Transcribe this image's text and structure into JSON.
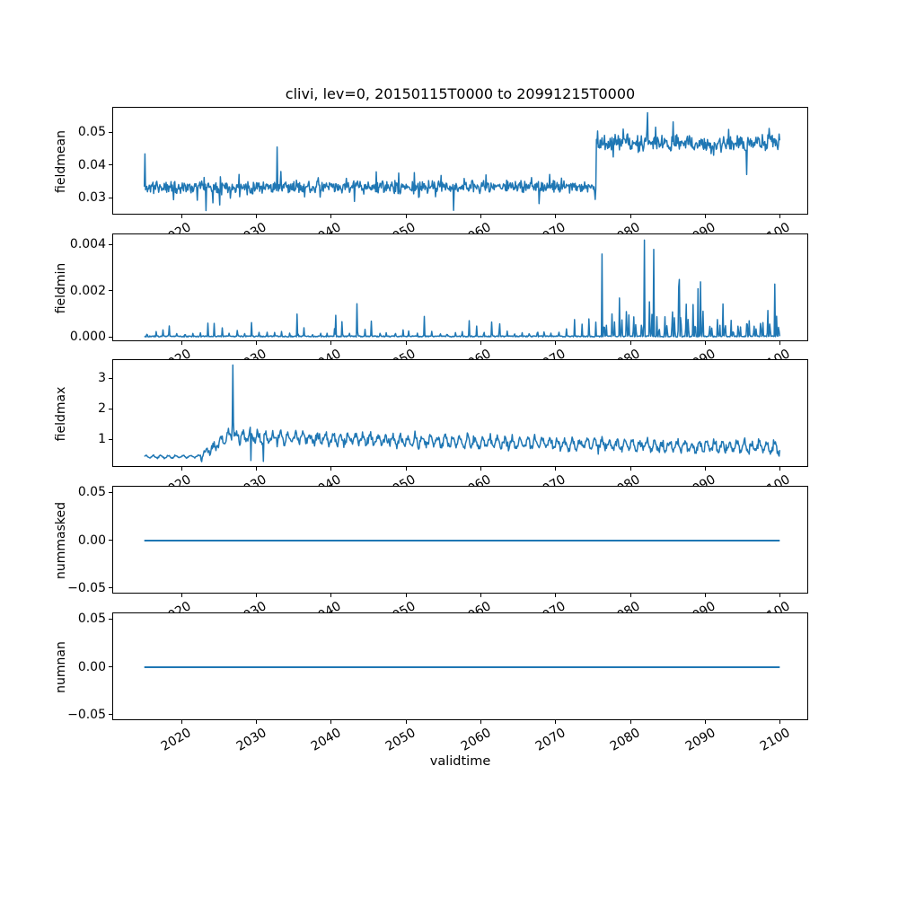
{
  "figure": {
    "title": "clivi, lev=0, 20150115T0000 to 20991215T0000",
    "background": "#ffffff",
    "line_color": "#1f77b4",
    "frame_color": "#000000",
    "text_color": "#000000"
  },
  "x_axis": {
    "label": "validtime",
    "xlim": [
      2010.88,
      2103.88
    ],
    "ticks": [
      2020,
      2030,
      2040,
      2050,
      2060,
      2070,
      2080,
      2090,
      2100
    ],
    "tick_labels": [
      "2020",
      "2030",
      "2040",
      "2050",
      "2060",
      "2070",
      "2080",
      "2090",
      "2100"
    ],
    "tick_label_rotation_deg": 30,
    "x_start": 2015.042,
    "x_end": 2099.958,
    "n_points": 1020
  },
  "chart_data": [
    {
      "type": "line",
      "panel": "fieldmean",
      "ylabel": "fieldmean",
      "ylim": [
        0.0247,
        0.0576
      ],
      "yticks": [
        {
          "value": 0.03,
          "label": "0.03"
        },
        {
          "value": 0.04,
          "label": "0.04"
        },
        {
          "value": 0.05,
          "label": "0.05"
        }
      ],
      "summary": "Monthly field mean ~0.033 (range 0.026-0.044) from 2015 to mid-2075; abrupt upward regime shift at ~2075.5 to ~0.047 (range 0.037-0.056) through 2099.",
      "stroke_width": 1.5,
      "gen": {
        "type": "step_noise",
        "seed": 11,
        "step_x": 2075.45,
        "pre": {
          "base": 0.0334,
          "amp": 0.0022,
          "outlier_p": 0.07,
          "outlier_amp": 0.0046
        },
        "post": {
          "base": 0.0468,
          "amp": 0.003,
          "outlier_p": 0.09,
          "outlier_amp": 0.005
        },
        "specials": [
          [
            2015.12,
            0.0435
          ],
          [
            2023.3,
            0.0262
          ],
          [
            2032.8,
            0.0456
          ],
          [
            2056.4,
            0.0263
          ],
          [
            2075.3,
            0.0296
          ],
          [
            2075.62,
            0.0505
          ],
          [
            2082.3,
            0.0561
          ],
          [
            2095.5,
            0.0372
          ]
        ]
      }
    },
    {
      "type": "line",
      "panel": "fieldmin",
      "ylabel": "fieldmin",
      "ylim": [
        -0.00021,
        0.00445
      ],
      "yticks": [
        {
          "value": 0.0,
          "label": "0.000"
        },
        {
          "value": 0.002,
          "label": "0.002"
        },
        {
          "value": 0.004,
          "label": "0.004"
        }
      ],
      "summary": "Field minimum near 0 with small annual spikes (up to ~0.0005-0.0015) until ~2075; afterwards much larger recurring spikes up to ~0.0042 around 2082.",
      "stroke_width": 1.5,
      "gen": {
        "type": "annual_spikes",
        "seed": 22,
        "step_x": 2075.5,
        "base": 4e-05,
        "pre": {
          "amp_min": 0.00015,
          "amp_max": 0.0009
        },
        "post": {
          "amp_min": 0.0007,
          "amp_max": 0.0028
        },
        "specials": [
          [
            2035.5,
            0.001
          ],
          [
            2040.6,
            0.00095
          ],
          [
            2043.5,
            0.00145
          ],
          [
            2052.5,
            0.0009
          ],
          [
            2076.2,
            0.0036
          ],
          [
            2081.9,
            0.0042
          ],
          [
            2083.1,
            0.0038
          ],
          [
            2086.5,
            0.0025
          ],
          [
            2089.0,
            0.0021
          ],
          [
            2099.3,
            0.0023
          ]
        ]
      }
    },
    {
      "type": "line",
      "panel": "fieldmax",
      "ylabel": "fieldmax",
      "ylim": [
        0.09,
        3.61
      ],
      "yticks": [
        {
          "value": 1,
          "label": "1"
        },
        {
          "value": 2,
          "label": "2"
        },
        {
          "value": 3,
          "label": "3"
        }
      ],
      "summary": "Field maximum ~0.45 with small annual cycle until ~2022.5, ramps up to ~1.1 by 2026, isolated spike to ~3.45 at ~2027, then noisy 0.4-1.4 slowly declining to ~0.75 by 2100.",
      "stroke_width": 1.5,
      "gen": {
        "type": "trend_noise",
        "seed": 33,
        "pre_end": 2022.5,
        "trend": [
          [
            2015.0,
            0.45
          ],
          [
            2022.5,
            0.46
          ],
          [
            2026.5,
            1.12
          ],
          [
            2045.0,
            1.0
          ],
          [
            2100.0,
            0.74
          ]
        ],
        "osc_amp_pre": 0.045,
        "osc_amp_post": 0.17,
        "noise_pre": 0.025,
        "noise_post": 0.16,
        "clamp_min": 0.24,
        "specials": [
          [
            2026.9,
            3.45
          ],
          [
            2026.82,
            1.5
          ],
          [
            2026.98,
            1.55
          ],
          [
            2029.3,
            0.33
          ],
          [
            2031.0,
            0.3
          ]
        ]
      }
    },
    {
      "type": "line",
      "panel": "nummasked",
      "ylabel": "nummasked",
      "ylim": [
        -0.0565,
        0.0565
      ],
      "yticks": [
        {
          "value": -0.05,
          "label": "−0.05"
        },
        {
          "value": 0.0,
          "label": "0.00"
        },
        {
          "value": 0.05,
          "label": "0.05"
        }
      ],
      "summary": "Number of masked points: constant 0 for the whole period.",
      "stroke_width": 2,
      "gen": {
        "type": "flat",
        "value": 0
      }
    },
    {
      "type": "line",
      "panel": "numnan",
      "ylabel": "numnan",
      "ylim": [
        -0.0565,
        0.0565
      ],
      "yticks": [
        {
          "value": -0.05,
          "label": "−0.05"
        },
        {
          "value": 0.0,
          "label": "0.00"
        },
        {
          "value": 0.05,
          "label": "0.05"
        }
      ],
      "summary": "Number of NaN points: constant 0 for the whole period.",
      "stroke_width": 2,
      "gen": {
        "type": "flat",
        "value": 0
      }
    }
  ]
}
